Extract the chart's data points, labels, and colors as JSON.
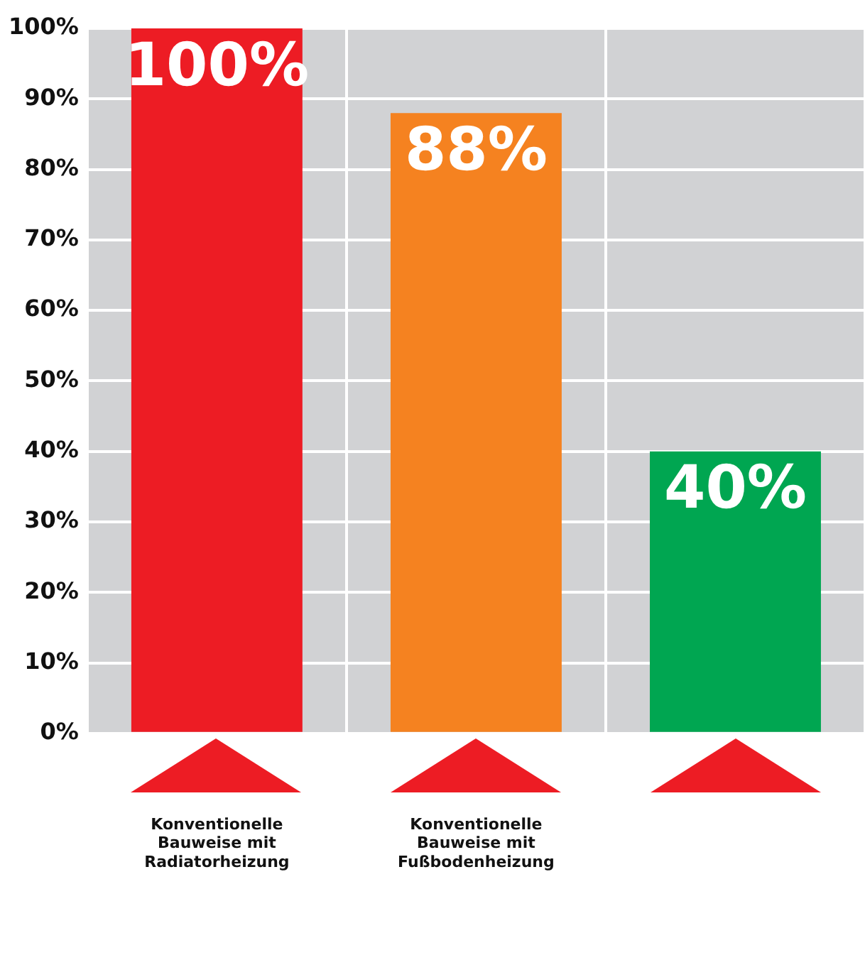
{
  "chart_data": {
    "type": "bar",
    "categories": [
      "Konventionelle Bauweise mit Radiatorheizung",
      "Konventionelle Bauweise mit Fußbodenheizung",
      null
    ],
    "values": [
      100,
      88,
      40
    ],
    "colors": [
      "#ed1c24",
      "#f58220",
      "#00a651"
    ],
    "ylim": [
      0,
      100
    ],
    "yticks": [
      {
        "value": 0,
        "label": "0%"
      },
      {
        "value": 10,
        "label": "10%"
      },
      {
        "value": 20,
        "label": "20%"
      },
      {
        "value": 30,
        "label": "30%"
      },
      {
        "value": 40,
        "label": "40%"
      },
      {
        "value": 50,
        "label": "50%"
      },
      {
        "value": 60,
        "label": "60%"
      },
      {
        "value": 70,
        "label": "70%"
      },
      {
        "value": 80,
        "label": "80%"
      },
      {
        "value": 90,
        "label": "90%"
      },
      {
        "value": 100,
        "label": "100%"
      }
    ],
    "value_labels": [
      "100%",
      "88%",
      "40%"
    ],
    "grid": true,
    "legend": false
  }
}
